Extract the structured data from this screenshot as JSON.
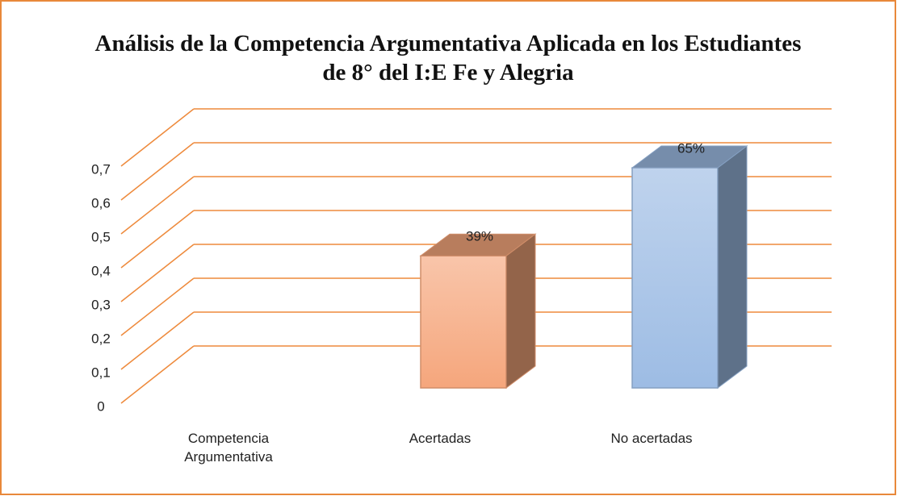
{
  "chart_data": {
    "type": "bar3d",
    "title": "Análisis de la Competencia Argumentativa Aplicada en los Estudiantes de 8° del I:E Fe y Alegria",
    "categories": [
      "Competencia Argumentativa",
      "Acertadas",
      "No acertadas"
    ],
    "values": [
      null,
      0.39,
      0.65
    ],
    "value_labels": [
      null,
      "39%",
      "65%"
    ],
    "colors": [
      null,
      "#f5a67c",
      "#9dbce4"
    ],
    "ylim": [
      0,
      0.7
    ],
    "yticks": [
      0,
      {
        "value": 0.1,
        "label": "0,1"
      },
      {
        "value": 0.2,
        "label": "0,2"
      },
      {
        "value": 0.3,
        "label": "0,3"
      },
      {
        "value": 0.4,
        "label": "0,4"
      },
      {
        "value": 0.5,
        "label": "0,5"
      },
      {
        "value": 0.6,
        "label": "0,6"
      },
      {
        "value": 0.7,
        "label": "0,7"
      }
    ],
    "grid": true,
    "grid_color": "#ee8a3c"
  }
}
